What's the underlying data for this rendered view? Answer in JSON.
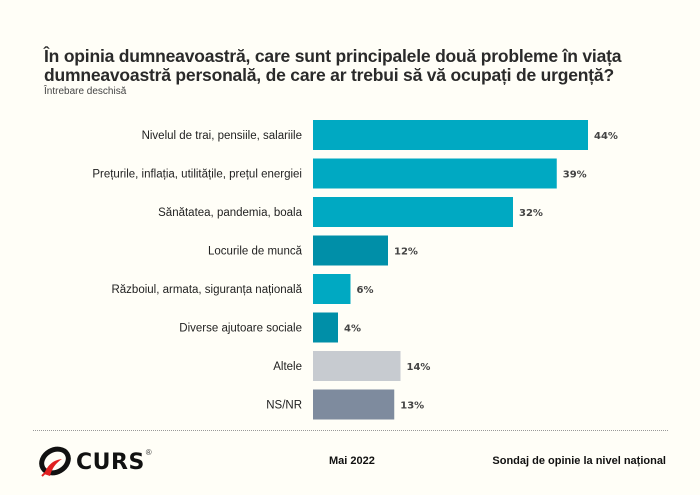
{
  "chart_data": {
    "type": "bar",
    "orientation": "horizontal",
    "title": "În opinia dumneavoastră, care sunt principalele două probleme în viața dumneavoastră personală, de care ar trebui să vă ocupați de urgență?",
    "subtitle": "Întrebare deschisă",
    "xlabel": "",
    "ylabel": "",
    "xlim": [
      0,
      50
    ],
    "grid": false,
    "unit": "%",
    "categories": [
      "Nivelul de trai, pensiile, salariile",
      "Prețurile, inflația, utilitățile, prețul energiei",
      "Sănătatea, pandemia, boala",
      "Locurile de muncă",
      "Războiul, armata, siguranța națională",
      "Diverse ajutoare sociale",
      "Altele",
      "NS/NR"
    ],
    "values": [
      44,
      39,
      32,
      12,
      6,
      4,
      14,
      13
    ],
    "value_labels": [
      "44%",
      "39%",
      "32%",
      "12%",
      "6%",
      "4%",
      "14%",
      "13%"
    ],
    "bar_colors": [
      "#00a9c2",
      "#00a9c2",
      "#00a9c2",
      "#008fa8",
      "#00a9c2",
      "#008fa8",
      "#c7cbd0",
      "#7e8b9e"
    ]
  },
  "footer": {
    "logo_text": "CURS",
    "logo_reg": "®",
    "date": "Mai 2022",
    "survey": "Sondaj de opinie la nivel național"
  }
}
